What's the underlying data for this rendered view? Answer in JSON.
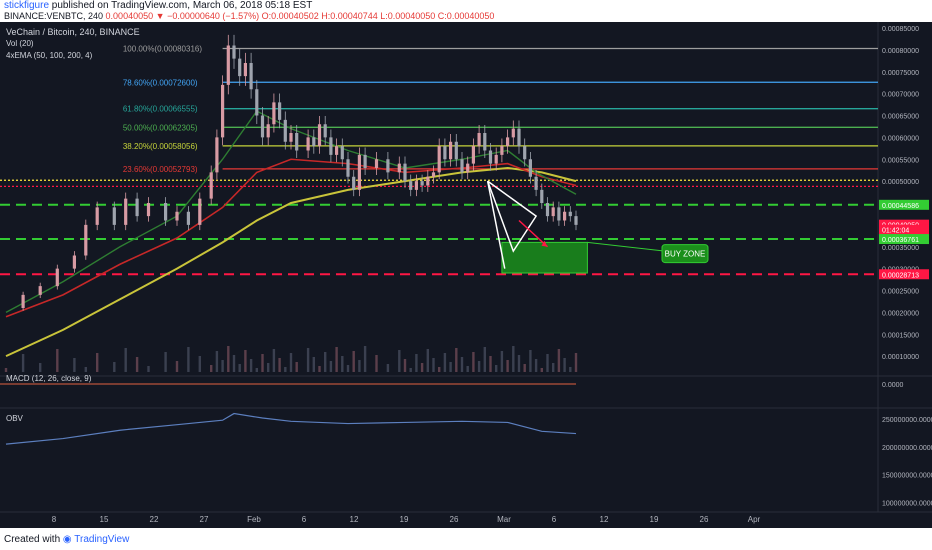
{
  "header": {
    "author": "stickfigure",
    "published": "published on TradingView.com, March 06, 2018 05:18 EST",
    "symbol": "BINANCE:VENBTC, 240",
    "last": "0.00040050",
    "change": "−0.00000640 (−1.57%)",
    "ohlc": "O:0.00040502 H:0.00040744 L:0.00040050 C:0.00040050"
  },
  "legend": {
    "title": "VeChain / Bitcoin, 240, BINANCE",
    "vol": "Vol (20)",
    "ema": "4xEMA (50, 100, 200, 4)",
    "macd": "MACD (12, 26, close, 9)",
    "obv": "OBV"
  },
  "footer": {
    "created": "Created with",
    "brand": "TradingView"
  },
  "annotation": {
    "buy_zone": "BUY ZONE"
  },
  "colors": {
    "background": "#131722",
    "up": "#d89ba4",
    "down": "#9fa4ae",
    "ema50": "#2e7d32",
    "ema100": "#c62828",
    "ema200": "#c9c43a",
    "fib_100": "#9e9e9e",
    "fib_786": "#42a5f5",
    "fib_618": "#26a69a",
    "fib_50": "#4caf50",
    "fib_382": "#c6d43a",
    "fib_236": "#e53935",
    "support_green": "#33cc33",
    "resistance_red": "#ff1744",
    "price_dotted": "#ffeb3b",
    "obv_line": "#5c7fbf"
  },
  "chart_data": {
    "type": "candlestick",
    "x_ticks": [
      "8",
      "15",
      "22",
      "27",
      "Feb",
      "6",
      "12",
      "19",
      "26",
      "Mar",
      "6",
      "12",
      "19",
      "26",
      "Apr"
    ],
    "y_axis_ticks": [
      "0.00085000",
      "0.00080000",
      "0.00075000",
      "0.00070000",
      "0.00065000",
      "0.00060000",
      "0.00055000",
      "0.00050000",
      "0.00045000",
      "0.00040000",
      "0.00035000",
      "0.00030000",
      "0.00025000",
      "0.00020000",
      "0.00015000",
      "0.00010000"
    ],
    "ylim": [
      5e-05,
      0.00085
    ],
    "price_tags": [
      {
        "label": "0.00044586",
        "value": 0.00044586,
        "color": "#33cc33"
      },
      {
        "label": "0.00040050",
        "value": 0.0004005,
        "color": "#ff1744"
      },
      {
        "label": "01:42:04",
        "value": 0.000389,
        "color": "#ff1744"
      },
      {
        "label": "0.00036761",
        "value": 0.00036761,
        "color": "#33cc33"
      },
      {
        "label": "0.00028713",
        "value": 0.00028713,
        "color": "#ff1744"
      }
    ],
    "fib_levels": [
      {
        "label": "100.00%(0.00080316)",
        "value": 0.00080316,
        "color": "#9e9e9e"
      },
      {
        "label": "78.60%(0.00072600)",
        "value": 0.000726,
        "color": "#42a5f5"
      },
      {
        "label": "61.80%(0.00066555)",
        "value": 0.00066555,
        "color": "#26a69a"
      },
      {
        "label": "50.00%(0.00062305)",
        "value": 0.00062305,
        "color": "#4caf50"
      },
      {
        "label": "38.20%(0.00058056)",
        "value": 0.00058056,
        "color": "#c6d43a"
      },
      {
        "label": "23.60%(0.00052793)",
        "value": 0.00052793,
        "color": "#e53935"
      }
    ],
    "horizontal_lines": [
      {
        "value": 0.000502,
        "color": "#ffeb3b",
        "style": "dotted"
      },
      {
        "value": 0.000488,
        "color": "#ff1744",
        "style": "dotted"
      },
      {
        "value": 0.00044586,
        "color": "#33cc33",
        "style": "dashed"
      },
      {
        "value": 0.00036761,
        "color": "#33cc33",
        "style": "dashed"
      },
      {
        "value": 0.00028713,
        "color": "#ff1744",
        "style": "dashed"
      }
    ],
    "price_path": [
      [
        0,
        0.00021
      ],
      [
        3,
        0.00024
      ],
      [
        6,
        0.00026
      ],
      [
        9,
        0.0003
      ],
      [
        12,
        0.00033
      ],
      [
        14,
        0.0004
      ],
      [
        16,
        0.00044
      ],
      [
        19,
        0.0004
      ],
      [
        21,
        0.00046
      ],
      [
        23,
        0.00042
      ],
      [
        25,
        0.00045
      ],
      [
        28,
        0.00041
      ],
      [
        30,
        0.00043
      ],
      [
        32,
        0.0004
      ],
      [
        34,
        0.00046
      ],
      [
        36,
        0.00052
      ],
      [
        37,
        0.0006
      ],
      [
        38,
        0.00072
      ],
      [
        39,
        0.00081
      ],
      [
        40,
        0.00078
      ],
      [
        41,
        0.00074
      ],
      [
        42,
        0.00077
      ],
      [
        43,
        0.00071
      ],
      [
        44,
        0.00065
      ],
      [
        45,
        0.0006
      ],
      [
        46,
        0.00063
      ],
      [
        47,
        0.00068
      ],
      [
        48,
        0.00064
      ],
      [
        49,
        0.00059
      ],
      [
        50,
        0.00061
      ],
      [
        51,
        0.00057
      ],
      [
        53,
        0.0006
      ],
      [
        54,
        0.00058
      ],
      [
        55,
        0.00063
      ],
      [
        56,
        0.0006
      ],
      [
        57,
        0.00056
      ],
      [
        58,
        0.00058
      ],
      [
        59,
        0.00055
      ],
      [
        60,
        0.00051
      ],
      [
        61,
        0.00048
      ],
      [
        62,
        0.00056
      ],
      [
        63,
        0.00053
      ],
      [
        65,
        0.00055
      ],
      [
        67,
        0.00052
      ],
      [
        69,
        0.00054
      ],
      [
        70,
        0.0005
      ],
      [
        71,
        0.00048
      ],
      [
        72,
        0.0005
      ],
      [
        73,
        0.00049
      ],
      [
        74,
        0.00051
      ],
      [
        75,
        0.00052
      ],
      [
        76,
        0.00058
      ],
      [
        77,
        0.00055
      ],
      [
        78,
        0.00059
      ],
      [
        79,
        0.00055
      ],
      [
        80,
        0.00052
      ],
      [
        81,
        0.00054
      ],
      [
        82,
        0.00058
      ],
      [
        83,
        0.00061
      ],
      [
        84,
        0.00057
      ],
      [
        85,
        0.00054
      ],
      [
        86,
        0.00056
      ],
      [
        87,
        0.00058
      ],
      [
        88,
        0.0006
      ],
      [
        89,
        0.00062
      ],
      [
        90,
        0.00058
      ],
      [
        91,
        0.00055
      ],
      [
        92,
        0.00051
      ],
      [
        93,
        0.00048
      ],
      [
        94,
        0.00045
      ],
      [
        95,
        0.00042
      ],
      [
        96,
        0.00044
      ],
      [
        97,
        0.00041
      ],
      [
        98,
        0.00043
      ],
      [
        99,
        0.00042
      ],
      [
        100,
        0.0004
      ]
    ],
    "ema50_path": [
      [
        0,
        0.0002
      ],
      [
        10,
        0.00027
      ],
      [
        20,
        0.00035
      ],
      [
        30,
        0.00042
      ],
      [
        38,
        0.00055
      ],
      [
        44,
        0.00066
      ],
      [
        50,
        0.00062
      ],
      [
        60,
        0.00057
      ],
      [
        70,
        0.00053
      ],
      [
        80,
        0.00055
      ],
      [
        88,
        0.00057
      ],
      [
        93,
        0.00052
      ],
      [
        100,
        0.00047
      ]
    ],
    "ema100_path": [
      [
        0,
        0.00019
      ],
      [
        10,
        0.00024
      ],
      [
        20,
        0.00031
      ],
      [
        30,
        0.00037
      ],
      [
        38,
        0.00044
      ],
      [
        44,
        0.00052
      ],
      [
        50,
        0.00055
      ],
      [
        60,
        0.00054
      ],
      [
        70,
        0.00052
      ],
      [
        80,
        0.00053
      ],
      [
        88,
        0.00054
      ],
      [
        94,
        0.00051
      ],
      [
        100,
        0.00049
      ]
    ],
    "ema200_path": [
      [
        0,
        0.0001
      ],
      [
        10,
        0.00016
      ],
      [
        20,
        0.00023
      ],
      [
        30,
        0.0003
      ],
      [
        38,
        0.00036
      ],
      [
        44,
        0.00041
      ],
      [
        50,
        0.00045
      ],
      [
        60,
        0.00048
      ],
      [
        70,
        0.0005
      ],
      [
        80,
        0.00052
      ],
      [
        88,
        0.00053
      ],
      [
        94,
        0.00052
      ],
      [
        100,
        0.0005
      ]
    ],
    "wedge": [
      [
        84.5,
        0.0005
      ],
      [
        93,
        0.00042
      ],
      [
        89,
        0.00034
      ],
      [
        84.5,
        0.0005
      ]
    ],
    "wedge_line": [
      [
        84.5,
        0.0005
      ],
      [
        87.5,
        0.0003
      ]
    ],
    "arrow": [
      [
        90,
        0.00041
      ],
      [
        95,
        0.00035
      ]
    ],
    "buy_zone": {
      "x0": 87,
      "x1": 102,
      "y0": 0.00036,
      "y1": 0.00029
    },
    "macd": {
      "value_label": "0.0000",
      "signal": 0.0
    },
    "obv": {
      "ticks": [
        "250000000.0000",
        "200000000.0000",
        "150000000.0000",
        "100000000.0000"
      ],
      "ylim": [
        90000000,
        270000000
      ],
      "path": [
        [
          0,
          205000000
        ],
        [
          10,
          215000000
        ],
        [
          20,
          230000000
        ],
        [
          30,
          240000000
        ],
        [
          38,
          248000000
        ],
        [
          40,
          260000000
        ],
        [
          45,
          252000000
        ],
        [
          50,
          246000000
        ],
        [
          60,
          242000000
        ],
        [
          70,
          244000000
        ],
        [
          80,
          246000000
        ],
        [
          88,
          244000000
        ],
        [
          94,
          228000000
        ],
        [
          100,
          224000000
        ]
      ]
    }
  }
}
